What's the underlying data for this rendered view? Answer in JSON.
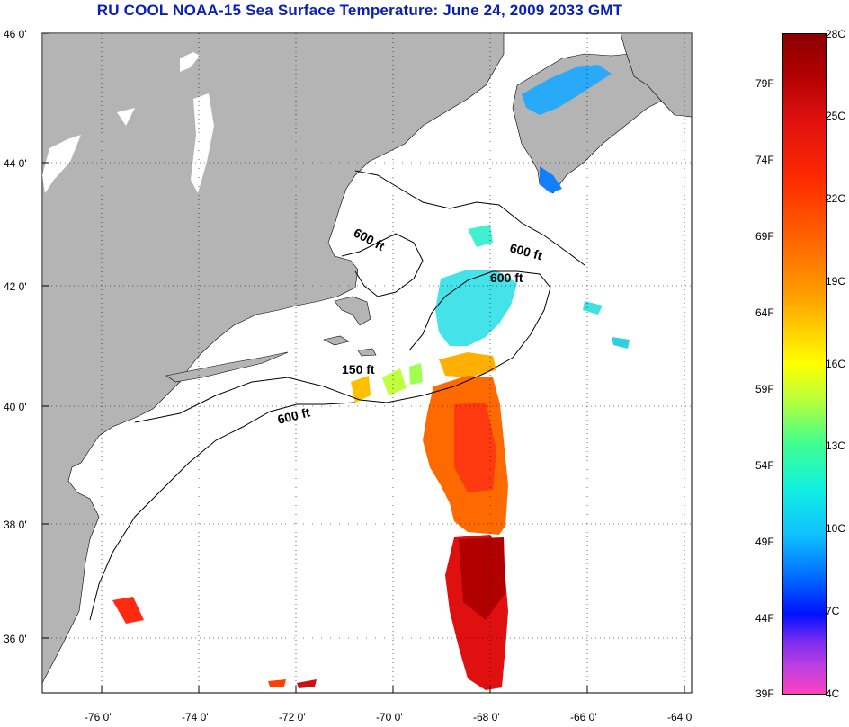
{
  "title": "RU COOL  NOAA-15  Sea Surface Temperature:  June 24, 2009 2033 GMT",
  "lat_labels": [
    "46 0'",
    "44 0'",
    "42 0'",
    "40 0'",
    "38 0'",
    "36 0'"
  ],
  "lon_labels": [
    "-76 0'",
    "-74 0'",
    "-72 0'",
    "-70 0'",
    "-68 0'",
    "-66 0'",
    "-64 0'"
  ],
  "contours": {
    "c1": "600 ft",
    "c2": "600 ft",
    "c3": "600 ft",
    "c4": "150 ft",
    "c5": "600 ft"
  },
  "colorbar": {
    "celsius": [
      "28C",
      "25C",
      "22C",
      "19C",
      "16C",
      "13C",
      "10C",
      "7C",
      "4C"
    ],
    "fahrenheit": [
      "79F",
      "74F",
      "69F",
      "64F",
      "59F",
      "54F",
      "49F",
      "44F",
      "39F"
    ]
  },
  "colors": {
    "title": "#0a1fb4",
    "land": "#b4b4b4",
    "ocean": "#ffffff"
  }
}
